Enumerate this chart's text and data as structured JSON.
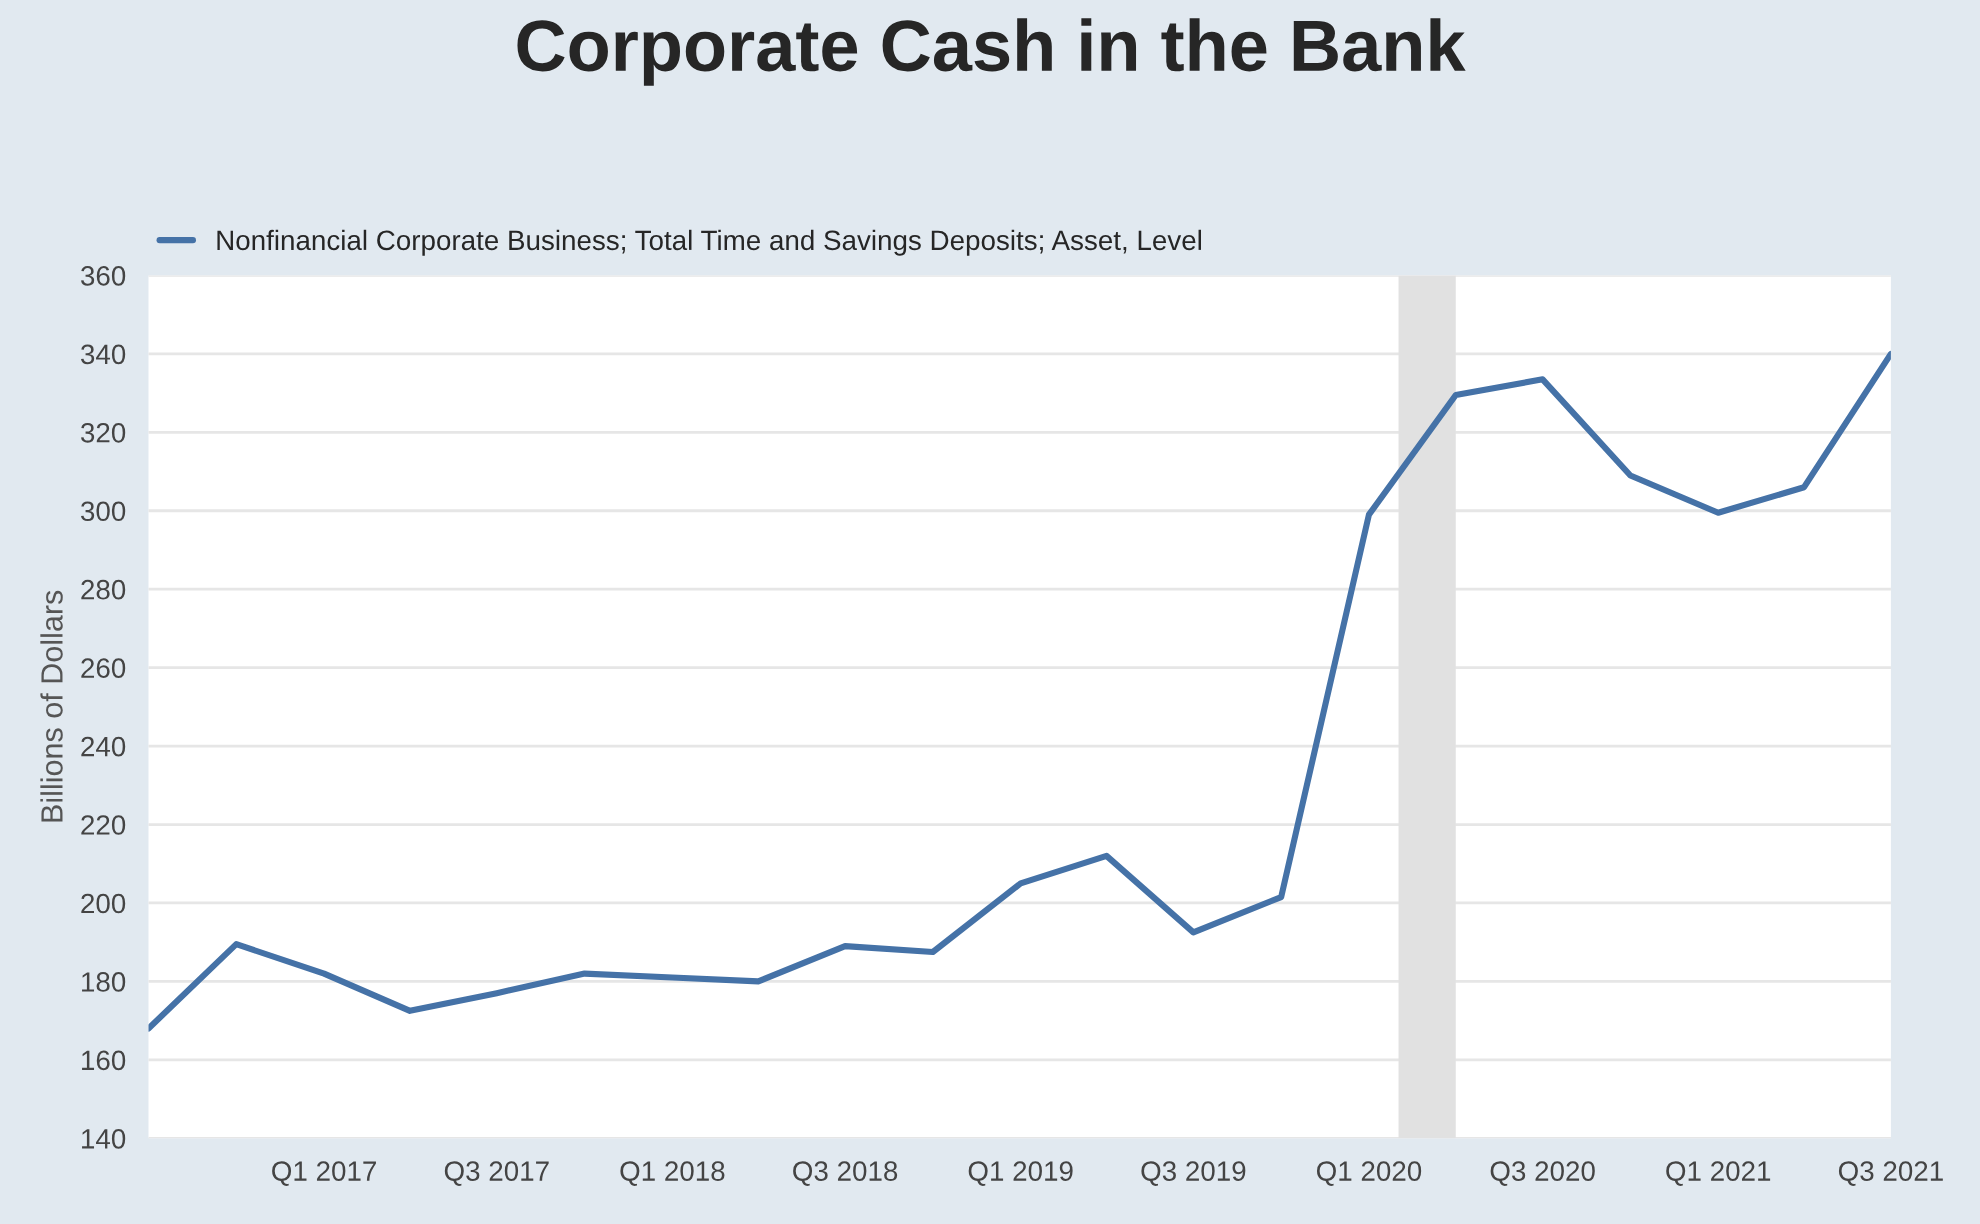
{
  "chart_data": {
    "type": "line",
    "title": "Corporate Cash in the Bank",
    "ylabel": "Billions of Dollars",
    "x": [
      "2016-07-01",
      "2016-10-01",
      "2017-01-01",
      "2017-04-01",
      "2017-07-01",
      "2017-10-01",
      "2018-01-01",
      "2018-04-01",
      "2018-07-01",
      "2018-10-01",
      "2019-01-01",
      "2019-04-01",
      "2019-07-01",
      "2019-10-01",
      "2020-01-01",
      "2020-04-01",
      "2020-07-01",
      "2020-10-01",
      "2021-01-01",
      "2021-04-01",
      "2021-07-01"
    ],
    "series": [
      {
        "name": "Nonfinancial Corporate Business; Total Time and Savings Deposits; Asset, Level",
        "color": "#4572a7",
        "values": [
          168,
          189.5,
          182,
          172.5,
          177,
          182,
          181,
          180,
          189,
          187.5,
          205,
          212,
          192.5,
          201.5,
          299,
          329.5,
          333.5,
          309,
          299.5,
          306,
          340
        ]
      }
    ],
    "xlim": [
      "2016-07-01",
      "2021-07-01"
    ],
    "xticks": [
      {
        "value": "2017-01-01",
        "label": "Q1 2017"
      },
      {
        "value": "2017-07-01",
        "label": "Q3 2017"
      },
      {
        "value": "2018-01-01",
        "label": "Q1 2018"
      },
      {
        "value": "2018-07-01",
        "label": "Q3 2018"
      },
      {
        "value": "2019-01-01",
        "label": "Q1 2019"
      },
      {
        "value": "2019-07-01",
        "label": "Q3 2019"
      },
      {
        "value": "2020-01-01",
        "label": "Q1 2020"
      },
      {
        "value": "2020-07-01",
        "label": "Q3 2020"
      },
      {
        "value": "2021-01-01",
        "label": "Q1 2021"
      },
      {
        "value": "2021-07-01",
        "label": "Q3 2021"
      }
    ],
    "ylim": [
      140,
      360
    ],
    "yticks": [
      140,
      160,
      180,
      200,
      220,
      240,
      260,
      280,
      300,
      320,
      340,
      360
    ],
    "bands": [
      {
        "axis": "x",
        "from": "2020-02-01",
        "to": "2020-04-01",
        "color": "#e1e1e1"
      }
    ],
    "grid": "y",
    "legend": "top left",
    "marker": "none",
    "line_style": "solid"
  }
}
